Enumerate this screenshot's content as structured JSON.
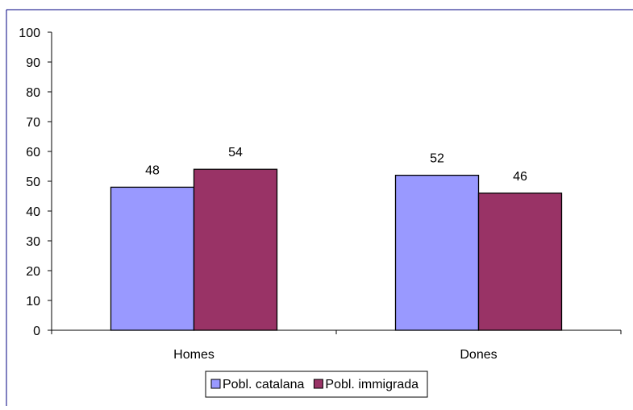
{
  "chart_data": {
    "type": "bar",
    "title": "",
    "xlabel": "",
    "ylabel": "",
    "categories": [
      "Homes",
      "Dones"
    ],
    "series": [
      {
        "name": "Pobl. catalana",
        "values": [
          48,
          52
        ],
        "color": "#9999ff"
      },
      {
        "name": "Pobl. immigrada",
        "values": [
          54,
          46
        ],
        "color": "#993366"
      }
    ],
    "ylim": [
      0,
      100
    ],
    "yticks": [
      "0",
      "10",
      "20",
      "30",
      "40",
      "50",
      "60",
      "70",
      "80",
      "90",
      "100"
    ],
    "data_labels": true,
    "grid": false,
    "legend_position": "bottom-center"
  },
  "colors": {
    "frame": "#000080",
    "axis": "#000000",
    "bar_outline": "#000000"
  }
}
